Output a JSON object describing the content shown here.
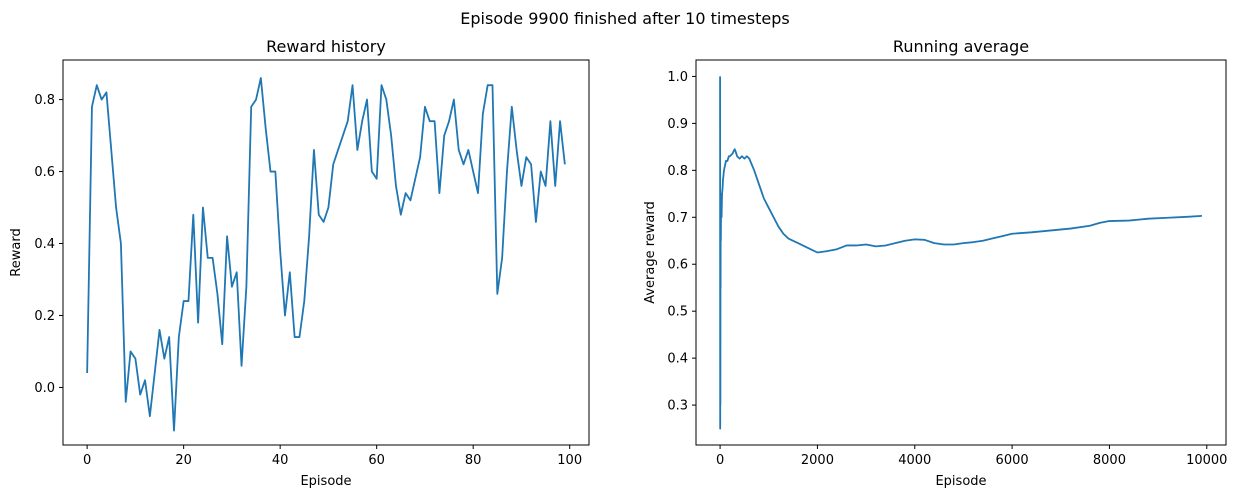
{
  "figure": {
    "suptitle": "Episode 9900 finished after 10 timesteps"
  },
  "chart_data": [
    {
      "type": "line",
      "title": "Reward history",
      "xlabel": "Episode",
      "ylabel": "Reward",
      "xlim": [
        -5,
        104
      ],
      "ylim": [
        -0.16,
        0.91
      ],
      "xticks": [
        0,
        20,
        40,
        60,
        80,
        100
      ],
      "yticks": [
        0.0,
        0.2,
        0.4,
        0.6,
        0.8
      ],
      "ytick_labels": [
        "0.0",
        "0.2",
        "0.4",
        "0.6",
        "0.8"
      ],
      "grid": false,
      "color": "#1f77b4",
      "x": [
        0,
        1,
        2,
        3,
        4,
        5,
        6,
        7,
        8,
        9,
        10,
        11,
        12,
        13,
        14,
        15,
        16,
        17,
        18,
        19,
        20,
        21,
        22,
        23,
        24,
        25,
        26,
        27,
        28,
        29,
        30,
        31,
        32,
        33,
        34,
        35,
        36,
        37,
        38,
        39,
        40,
        41,
        42,
        43,
        44,
        45,
        46,
        47,
        48,
        49,
        50,
        51,
        52,
        53,
        54,
        55,
        56,
        57,
        58,
        59,
        60,
        61,
        62,
        63,
        64,
        65,
        66,
        67,
        68,
        69,
        70,
        71,
        72,
        73,
        74,
        75,
        76,
        77,
        78,
        79,
        80,
        81,
        82,
        83,
        84,
        85,
        86,
        87,
        88,
        89,
        90,
        91,
        92,
        93,
        94,
        95,
        96,
        97,
        98,
        99
      ],
      "y": [
        0.04,
        0.78,
        0.84,
        0.8,
        0.82,
        0.66,
        0.5,
        0.4,
        -0.04,
        0.1,
        0.08,
        -0.02,
        0.02,
        -0.08,
        0.04,
        0.16,
        0.08,
        0.14,
        -0.12,
        0.14,
        0.24,
        0.24,
        0.48,
        0.18,
        0.5,
        0.36,
        0.36,
        0.26,
        0.12,
        0.42,
        0.28,
        0.32,
        0.06,
        0.28,
        0.78,
        0.8,
        0.86,
        0.72,
        0.6,
        0.6,
        0.38,
        0.2,
        0.32,
        0.14,
        0.14,
        0.24,
        0.42,
        0.66,
        0.48,
        0.46,
        0.5,
        0.62,
        0.66,
        0.7,
        0.74,
        0.84,
        0.66,
        0.74,
        0.8,
        0.6,
        0.58,
        0.84,
        0.8,
        0.7,
        0.56,
        0.48,
        0.54,
        0.52,
        0.58,
        0.64,
        0.78,
        0.74,
        0.74,
        0.54,
        0.7,
        0.74,
        0.8,
        0.66,
        0.62,
        0.66,
        0.6,
        0.54,
        0.76,
        0.84,
        0.84,
        0.26,
        0.36,
        0.6,
        0.78,
        0.66,
        0.56,
        0.64,
        0.62,
        0.46,
        0.6,
        0.56,
        0.74,
        0.56,
        0.74,
        0.62
      ]
    },
    {
      "type": "line",
      "title": "Running average",
      "xlabel": "Episode",
      "ylabel": "Average reward",
      "xlim": [
        -495,
        10395
      ],
      "ylim": [
        0.215,
        1.035
      ],
      "xticks": [
        0,
        2000,
        4000,
        6000,
        8000,
        10000
      ],
      "yticks": [
        0.3,
        0.4,
        0.5,
        0.6,
        0.7,
        0.8,
        0.9,
        1.0
      ],
      "ytick_labels": [
        "0.3",
        "0.4",
        "0.5",
        "0.6",
        "0.7",
        "0.8",
        "0.9",
        "1.0"
      ],
      "grid": false,
      "color": "#1f77b4",
      "x": [
        0,
        2,
        4,
        6,
        8,
        10,
        12,
        15,
        20,
        25,
        30,
        40,
        50,
        60,
        80,
        100,
        120,
        150,
        180,
        200,
        250,
        300,
        320,
        350,
        400,
        450,
        500,
        550,
        600,
        700,
        800,
        900,
        1000,
        1100,
        1200,
        1300,
        1400,
        1500,
        1600,
        1700,
        1800,
        1900,
        2000,
        2200,
        2400,
        2600,
        2800,
        3000,
        3200,
        3400,
        3600,
        3800,
        4000,
        4200,
        4400,
        4600,
        4800,
        5000,
        5200,
        5400,
        5600,
        5800,
        6000,
        6400,
        6800,
        7200,
        7600,
        7800,
        8000,
        8400,
        8800,
        9200,
        9600,
        9900
      ],
      "y": [
        1.0,
        0.25,
        0.4,
        0.3,
        0.62,
        0.55,
        0.68,
        0.65,
        0.72,
        0.75,
        0.7,
        0.75,
        0.76,
        0.78,
        0.8,
        0.81,
        0.82,
        0.82,
        0.83,
        0.83,
        0.835,
        0.845,
        0.84,
        0.83,
        0.825,
        0.83,
        0.825,
        0.83,
        0.825,
        0.8,
        0.77,
        0.74,
        0.72,
        0.7,
        0.68,
        0.665,
        0.655,
        0.65,
        0.645,
        0.64,
        0.635,
        0.63,
        0.625,
        0.628,
        0.632,
        0.64,
        0.64,
        0.642,
        0.638,
        0.64,
        0.645,
        0.65,
        0.653,
        0.652,
        0.645,
        0.642,
        0.642,
        0.645,
        0.647,
        0.65,
        0.655,
        0.66,
        0.665,
        0.668,
        0.672,
        0.676,
        0.682,
        0.688,
        0.692,
        0.693,
        0.697,
        0.699,
        0.701,
        0.703
      ]
    }
  ]
}
